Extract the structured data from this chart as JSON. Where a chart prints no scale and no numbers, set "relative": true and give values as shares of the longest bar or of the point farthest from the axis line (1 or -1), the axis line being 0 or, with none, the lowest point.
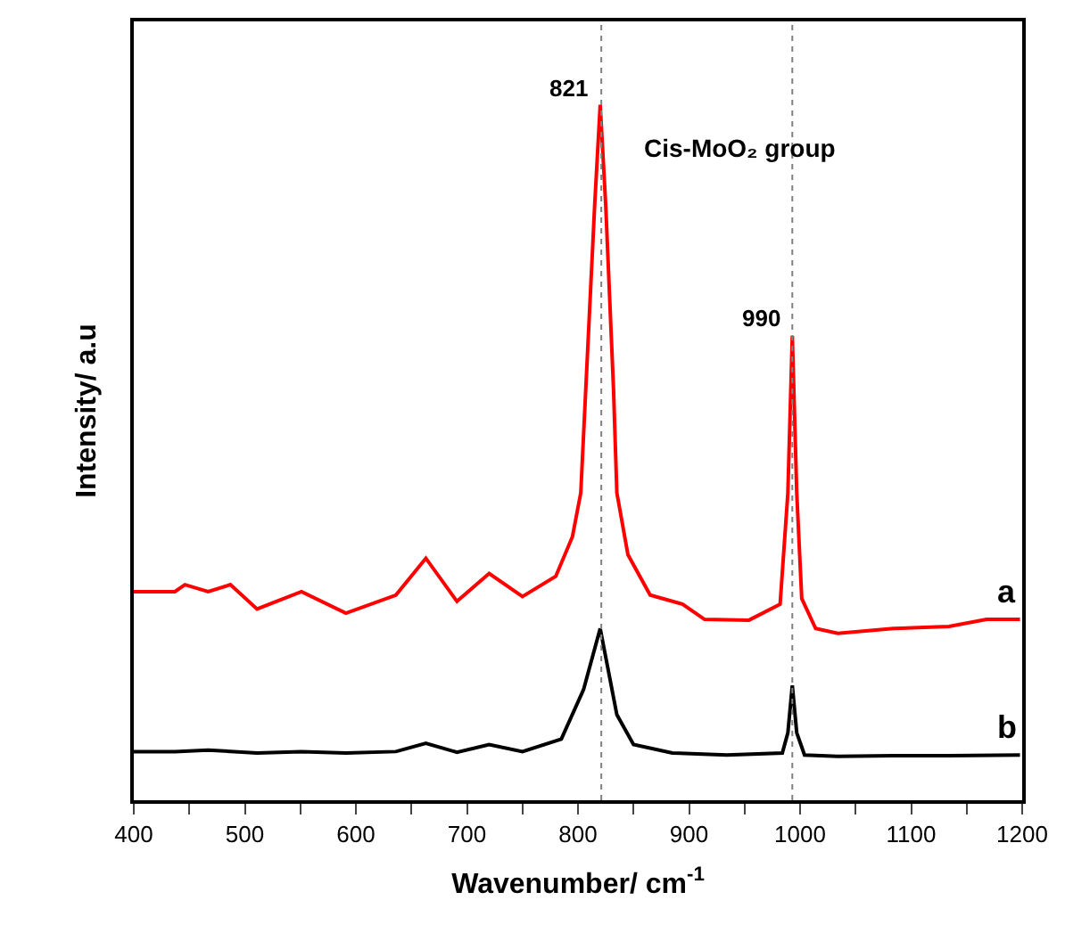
{
  "chart_data": {
    "type": "line",
    "relative": true,
    "xlabel": "Wavenumber/ cm$^{-1}$",
    "ylabel": "Intensity/ a.u",
    "xlim": [
      400,
      1200
    ],
    "xticks": [
      400,
      {
        "value": 450,
        "label": null
      },
      500,
      {
        "value": 550,
        "label": null
      },
      600,
      {
        "value": 650,
        "label": null
      },
      700,
      {
        "value": 750,
        "label": null
      },
      800,
      {
        "value": 850,
        "label": null
      },
      900,
      {
        "value": 950,
        "label": null
      },
      1000,
      {
        "value": 1050,
        "label": null
      },
      1100,
      {
        "value": 1150,
        "label": null
      },
      1200
    ],
    "legend": false,
    "marker": "none",
    "line_style": "solid",
    "series": [
      {
        "name": "a",
        "color": "#ff0000",
        "x": [
          400,
          437,
          446,
          467,
          487,
          511,
          551,
          591,
          636,
          663,
          691,
          720,
          750,
          780,
          795,
          802.5,
          807,
          815,
          820,
          825,
          832,
          835,
          845,
          865,
          894,
          914,
          954,
          982,
          989,
          993,
          997,
          1001.5,
          1014,
          1034,
          1084,
          1134,
          1168,
          1198
        ],
        "values": [
          0.3,
          0.3,
          0.31,
          0.3,
          0.31,
          0.275,
          0.3,
          0.269,
          0.295,
          0.348,
          0.286,
          0.326,
          0.293,
          0.322,
          0.379,
          0.442,
          0.591,
          0.855,
          1.0,
          0.855,
          0.591,
          0.442,
          0.353,
          0.295,
          0.282,
          0.26,
          0.259,
          0.282,
          0.442,
          0.668,
          0.442,
          0.29,
          0.247,
          0.24,
          0.247,
          0.25,
          0.26,
          0.26
        ]
      },
      {
        "name": "b",
        "color": "#000000",
        "x": [
          400,
          437,
          467,
          511,
          551,
          591,
          636,
          663,
          691,
          720,
          750,
          785,
          805,
          820,
          835,
          850,
          885,
          934,
          984,
          989,
          993,
          997,
          1004,
          1034,
          1084,
          1134,
          1198
        ],
        "values": [
          0.07,
          0.07,
          0.072,
          0.068,
          0.07,
          0.068,
          0.07,
          0.082,
          0.069,
          0.08,
          0.07,
          0.088,
          0.159,
          0.247,
          0.123,
          0.08,
          0.068,
          0.065,
          0.068,
          0.097,
          0.165,
          0.097,
          0.065,
          0.063,
          0.064,
          0.064,
          0.065
        ]
      }
    ],
    "ref_lines": [
      {
        "axis": "x",
        "value": 821,
        "color": "#808080",
        "line_style": "dotted"
      },
      {
        "axis": "x",
        "value": 993,
        "color": "#808080",
        "line_style": "dotted"
      }
    ],
    "annotations": [
      {
        "text": "821",
        "x": 820,
        "y": 1.0
      },
      {
        "text": "990",
        "x": 993,
        "y": 0.668
      },
      "Cis-MoO₂ group"
    ]
  }
}
